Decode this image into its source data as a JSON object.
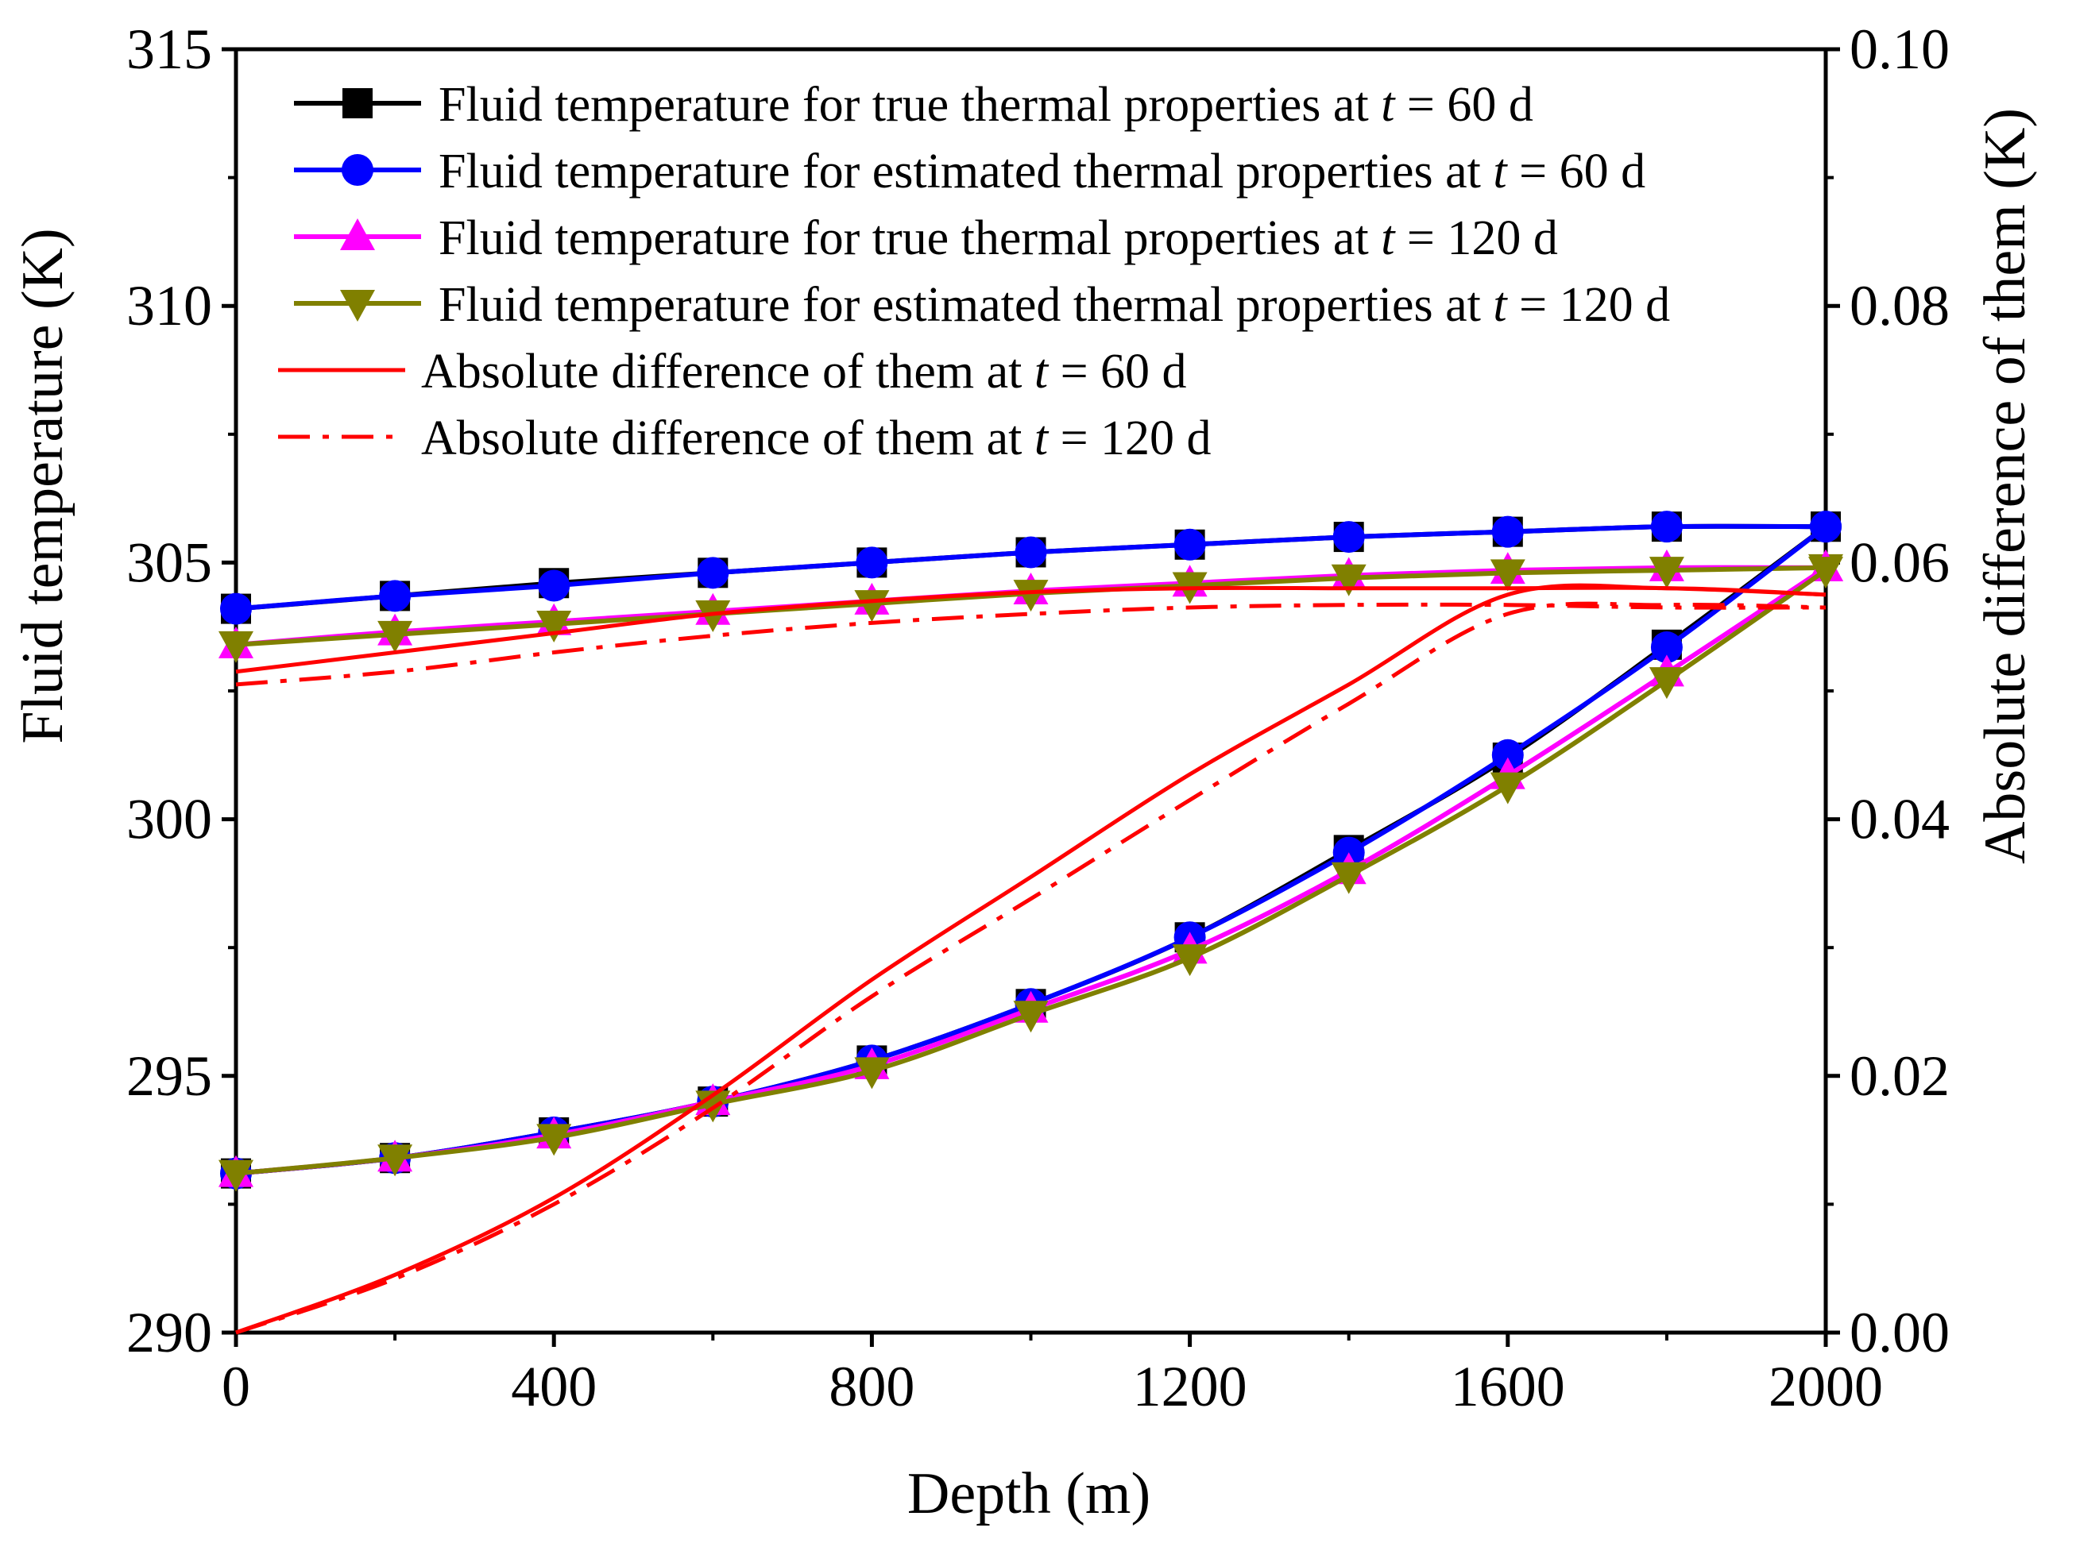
{
  "chart_data": {
    "type": "line",
    "x": [
      0,
      200,
      400,
      600,
      800,
      1000,
      1200,
      1400,
      1600,
      1800,
      2000
    ],
    "xlabel": "Depth (m)",
    "ylabel": "Fluid temperature (K)",
    "y2label": "Absolute difference of them (K)",
    "xlim": [
      0,
      2000
    ],
    "ylim": [
      290,
      315
    ],
    "y2lim": [
      0,
      0.1
    ],
    "xticks": [
      0,
      400,
      800,
      1200,
      1600,
      2000
    ],
    "xtick_labels": [
      "0",
      "400",
      "800",
      "1200",
      "1600",
      "2000"
    ],
    "yticks": [
      290,
      295,
      300,
      305,
      310,
      315
    ],
    "ytick_labels": [
      "290",
      "295",
      "300",
      "305",
      "310",
      "315"
    ],
    "y2ticks": [
      0,
      0.02,
      0.04,
      0.06,
      0.08,
      0.1
    ],
    "y2tick_labels": [
      "0.00",
      "0.02",
      "0.04",
      "0.06",
      "0.08",
      "0.10"
    ],
    "legend_position": "top-left",
    "series": [
      {
        "name": "Fluid temperature for true thermal properties at t = 60 d",
        "legend_pre": "Fluid temperature for true thermal properties at ",
        "legend_var": "t",
        "legend_post": " = 60 d",
        "color": "#000000",
        "marker": "square",
        "axis": "left",
        "branch": "down",
        "values": [
          304.1,
          304.35,
          304.6,
          304.8,
          305.0,
          305.2,
          305.35,
          305.5,
          305.6,
          305.7,
          305.7
        ]
      },
      {
        "name": "Fluid temperature for estimated thermal properties at t = 60 d",
        "legend_pre": "Fluid temperature for estimated thermal properties at ",
        "legend_var": "t",
        "legend_post": " = 60 d",
        "color": "#0000ff",
        "marker": "circle",
        "axis": "left",
        "branch": "down",
        "values": [
          304.1,
          304.35,
          304.55,
          304.8,
          305.0,
          305.2,
          305.35,
          305.5,
          305.6,
          305.7,
          305.7
        ]
      },
      {
        "name": "Fluid temperature for true thermal properties at t = 120 d",
        "legend_pre": "Fluid temperature for true thermal properties at ",
        "legend_var": "t",
        "legend_post": " = 120 d",
        "color": "#ff00ff",
        "marker": "triangle-up",
        "axis": "left",
        "branch": "down",
        "values": [
          303.4,
          303.65,
          303.85,
          304.05,
          304.25,
          304.45,
          304.6,
          304.75,
          304.85,
          304.9,
          304.9
        ]
      },
      {
        "name": "Fluid temperature for estimated thermal properties at t = 120 d",
        "legend_pre": "Fluid temperature for estimated thermal properties at ",
        "legend_var": "t",
        "legend_post": " = 120 d",
        "color": "#808000",
        "marker": "triangle-down",
        "axis": "left",
        "branch": "down",
        "values": [
          303.4,
          303.6,
          303.8,
          304.0,
          304.2,
          304.4,
          304.55,
          304.7,
          304.8,
          304.85,
          304.9
        ]
      },
      {
        "name": "Fluid temperature for true thermal properties at t = 60 d (up)",
        "color": "#000000",
        "marker": "square",
        "axis": "left",
        "branch": "up",
        "values": [
          293.1,
          293.4,
          293.9,
          294.5,
          295.3,
          296.4,
          297.7,
          299.4,
          301.2,
          303.4,
          305.7
        ]
      },
      {
        "name": "Fluid temperature for estimated thermal properties at t = 60 d (up)",
        "color": "#0000ff",
        "marker": "circle",
        "axis": "left",
        "branch": "up",
        "values": [
          293.1,
          293.4,
          293.9,
          294.5,
          295.3,
          296.4,
          297.7,
          299.35,
          301.25,
          303.35,
          305.7
        ]
      },
      {
        "name": "Fluid temperature for true thermal properties at t = 120 d (up)",
        "color": "#ff00ff",
        "marker": "triangle-up",
        "axis": "left",
        "branch": "up",
        "values": [
          293.1,
          293.4,
          293.85,
          294.5,
          295.2,
          296.3,
          297.45,
          299.0,
          300.85,
          302.85,
          304.9
        ]
      },
      {
        "name": "Fluid temperature for estimated thermal properties at t = 120 d (up)",
        "color": "#808000",
        "marker": "triangle-down",
        "axis": "left",
        "branch": "up",
        "values": [
          293.1,
          293.4,
          293.8,
          294.45,
          295.1,
          296.2,
          297.3,
          298.9,
          300.65,
          302.7,
          304.85
        ]
      },
      {
        "name": "Absolute difference of them at t = 60 d",
        "legend_pre": "Absolute difference of them at ",
        "legend_var": "t",
        "legend_post": " = 60 d",
        "color": "#ff0000",
        "marker": "none",
        "dash": "solid",
        "axis": "right",
        "branch": "both",
        "values_down": [
          0.0515,
          0.053,
          0.0545,
          0.056,
          0.057,
          0.0577,
          0.058,
          0.058,
          0.058,
          0.058,
          0.0575
        ],
        "values_up": [
          0.0,
          0.0045,
          0.0105,
          0.0185,
          0.0275,
          0.0355,
          0.0435,
          0.0505,
          0.0575,
          0.058,
          0.0575
        ]
      },
      {
        "name": "Absolute difference of them at t = 120 d",
        "legend_pre": "Absolute difference of them at ",
        "legend_var": "t",
        "legend_post": " = 120 d",
        "color": "#ff0000",
        "marker": "none",
        "dash": "dash-dot",
        "axis": "right",
        "branch": "both",
        "values_down": [
          0.0505,
          0.0515,
          0.053,
          0.0543,
          0.0553,
          0.056,
          0.0565,
          0.0567,
          0.0567,
          0.0565,
          0.0565
        ],
        "values_up": [
          0.0,
          0.0042,
          0.01,
          0.0175,
          0.0262,
          0.0338,
          0.0415,
          0.049,
          0.056,
          0.0567,
          0.0565
        ]
      }
    ]
  }
}
